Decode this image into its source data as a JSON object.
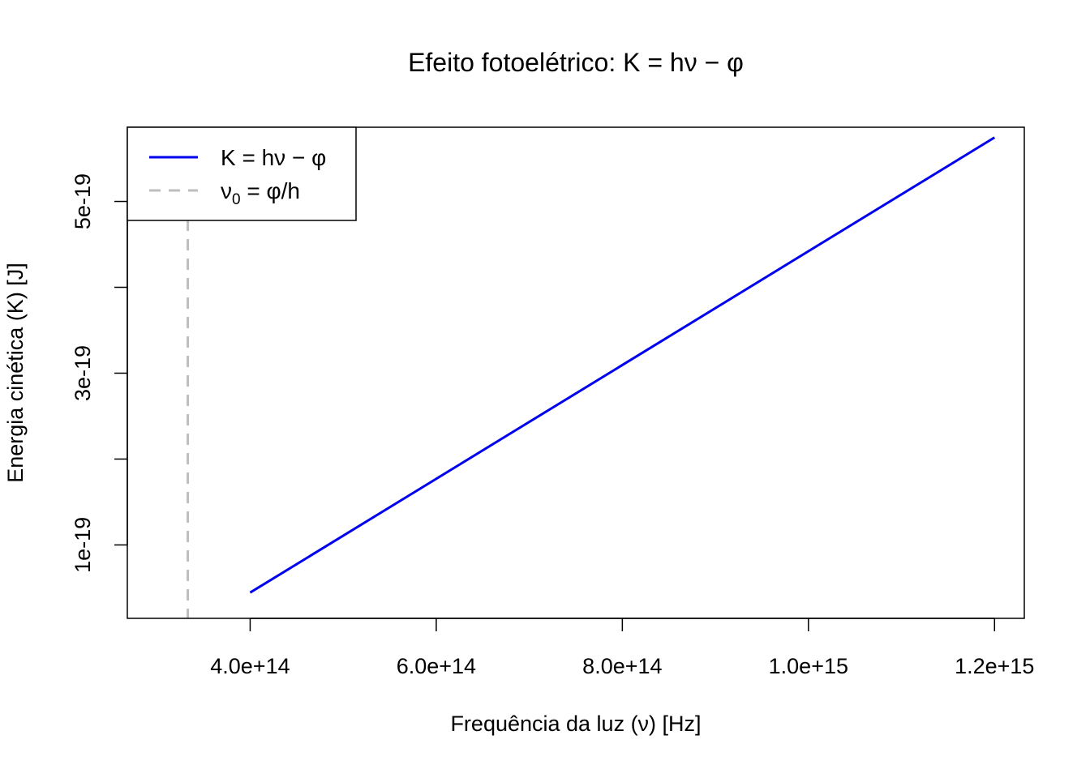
{
  "chart_data": {
    "type": "line",
    "title": "Efeito fotoelétrico: K = hν − φ",
    "xlabel": "Frequência da luz (ν) [Hz]",
    "ylabel": "Energia cinética (K) [J]",
    "xlim": [
      268000000000000,
      1232000000000000
    ],
    "ylim": [
      1.45e-20,
      5.864e-19
    ],
    "x_ticks": [
      {
        "value": 400000000000000,
        "label": "4.0e+14"
      },
      {
        "value": 600000000000000,
        "label": "6.0e+14"
      },
      {
        "value": 800000000000000,
        "label": "8.0e+14"
      },
      {
        "value": 1000000000000000,
        "label": "1.0e+15"
      },
      {
        "value": 1200000000000000,
        "label": "1.2e+15"
      }
    ],
    "y_ticks": [
      {
        "value": 1e-19,
        "label": "1e-19"
      },
      {
        "value": 2e-19,
        "label": ""
      },
      {
        "value": 3e-19,
        "label": "3e-19"
      },
      {
        "value": 4e-19,
        "label": ""
      },
      {
        "value": 5e-19,
        "label": "5e-19"
      }
    ],
    "series": [
      {
        "name": "K = hν − φ",
        "color": "#0000ee",
        "style": "solid",
        "x": [
          400000000000000,
          1200000000000000
        ],
        "y": [
          4.45e-20,
          5.745e-19
        ]
      }
    ],
    "threshold": {
      "name": "ν₀ = φ/h",
      "color": "#bebebe",
      "style": "dashed",
      "x": 333000000000000
    },
    "legend": {
      "position": "top-left",
      "entries": [
        {
          "prefix": "K = hν − φ",
          "sub": "",
          "suffix": ""
        },
        {
          "prefix": "ν",
          "sub": "0",
          "suffix": " = φ/h"
        }
      ]
    },
    "grid": false
  }
}
